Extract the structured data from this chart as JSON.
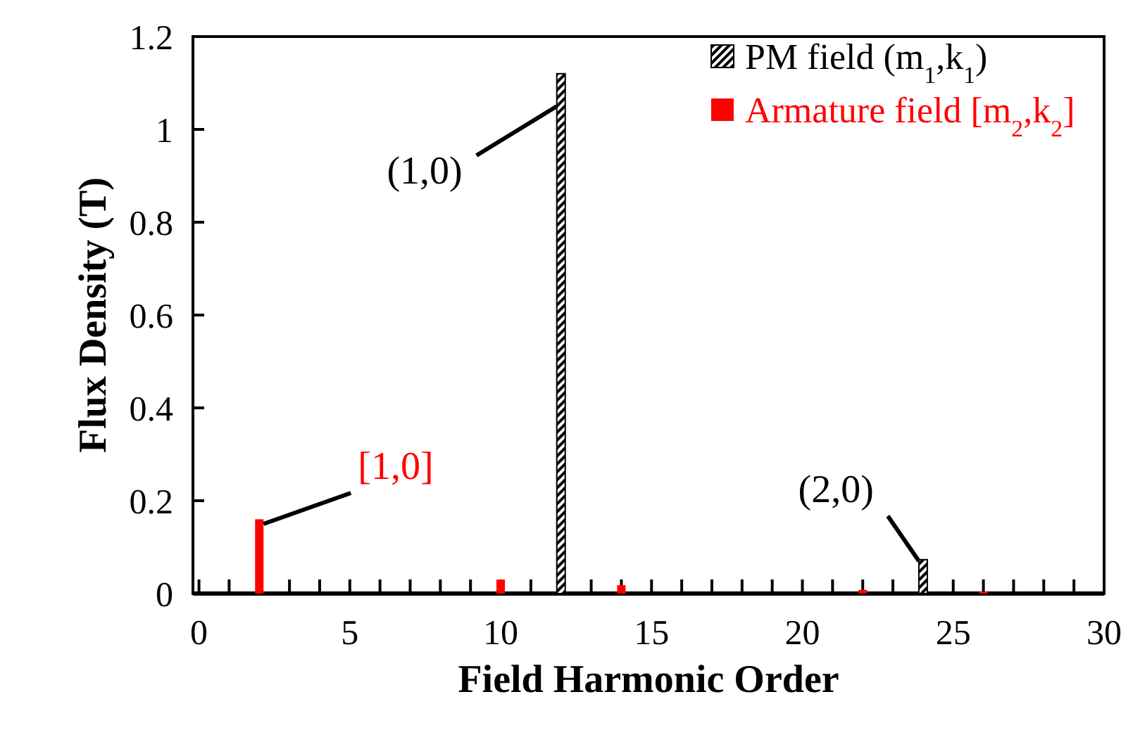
{
  "chart_data": {
    "type": "bar",
    "xlabel": "Field Harmonic Order",
    "ylabel": "Flux Density (T)",
    "xlim": [
      -0.2,
      30
    ],
    "xticks": [
      0,
      {
        "value": 1,
        "label": null
      },
      {
        "value": 2,
        "label": null
      },
      {
        "value": 3,
        "label": null
      },
      {
        "value": 4,
        "label": null
      },
      5,
      {
        "value": 6,
        "label": null
      },
      {
        "value": 7,
        "label": null
      },
      {
        "value": 8,
        "label": null
      },
      {
        "value": 9,
        "label": null
      },
      10,
      {
        "value": 11,
        "label": null
      },
      {
        "value": 12,
        "label": null
      },
      {
        "value": 13,
        "label": null
      },
      {
        "value": 14,
        "label": null
      },
      15,
      {
        "value": 16,
        "label": null
      },
      {
        "value": 17,
        "label": null
      },
      {
        "value": 18,
        "label": null
      },
      {
        "value": 19,
        "label": null
      },
      20,
      {
        "value": 21,
        "label": null
      },
      {
        "value": 22,
        "label": null
      },
      {
        "value": 23,
        "label": null
      },
      {
        "value": 24,
        "label": null
      },
      25,
      {
        "value": 26,
        "label": null
      },
      {
        "value": 27,
        "label": null
      },
      {
        "value": 28,
        "label": null
      },
      {
        "value": 29,
        "label": null
      },
      30
    ],
    "ylim": [
      0,
      1.2
    ],
    "yticks": [
      0,
      0.2,
      0.4,
      0.6,
      0.8,
      1,
      1.2
    ],
    "series": [
      {
        "name": "PM field (m$_{1}$,k$_{1}$)",
        "color": "#000000",
        "x": [
          12,
          24
        ],
        "values": [
          1.12,
          0.073
        ]
      },
      {
        "name": "Armature field [m$_{2}$,k$_{2}$]",
        "color": "#ff0000",
        "x": [
          2,
          10,
          14,
          22,
          26
        ],
        "values": [
          0.16,
          0.03,
          0.018,
          0.008,
          0.004
        ]
      }
    ],
    "annotations": [
      {
        "text": "(1,0)",
        "x": 12,
        "y": 1.05
      },
      {
        "text": "[1,0]",
        "x": 2,
        "y": 0.15
      },
      {
        "text": "(2,0)",
        "x": 24,
        "y": 0.07
      }
    ],
    "legend": "top right",
    "grid": false
  }
}
